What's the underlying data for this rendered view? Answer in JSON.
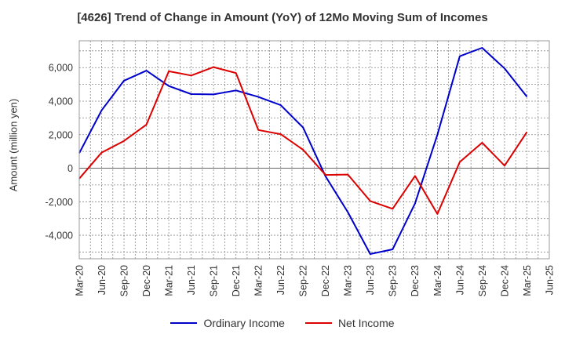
{
  "chart_data": {
    "type": "line",
    "title": "[4626]  Trend of Change in Amount (YoY) of 12Mo Moving Sum of Incomes",
    "xlabel": "",
    "ylabel": "Amount (million yen)",
    "categories": [
      "Mar-20",
      "Jun-20",
      "Sep-20",
      "Dec-20",
      "Mar-21",
      "Jun-21",
      "Sep-21",
      "Dec-21",
      "Mar-22",
      "Jun-22",
      "Sep-22",
      "Dec-22",
      "Mar-23",
      "Jun-23",
      "Sep-23",
      "Dec-23",
      "Mar-24",
      "Jun-24",
      "Sep-24",
      "Dec-24",
      "Mar-25",
      "Jun-25"
    ],
    "ylim": [
      -5400,
      7600
    ],
    "yticks": [
      -4000,
      -2000,
      0,
      2000,
      4000,
      6000
    ],
    "ytick_labels": [
      "-4,000",
      "-2,000",
      "0",
      "2,000",
      "4,000",
      "6,000"
    ],
    "grid": true,
    "legend_position": "bottom",
    "series": [
      {
        "name": "Ordinary Income",
        "color": "#0000cc",
        "values": [
          900,
          3450,
          5220,
          5820,
          4900,
          4420,
          4400,
          4640,
          4250,
          3760,
          2430,
          -480,
          -2620,
          -5120,
          -4840,
          -2100,
          2000,
          6680,
          7180,
          5950,
          4260,
          null
        ]
      },
      {
        "name": "Net Income",
        "color": "#dd0000",
        "values": [
          -620,
          930,
          1630,
          2600,
          5780,
          5530,
          6030,
          5680,
          2280,
          2030,
          1100,
          -400,
          -380,
          -1960,
          -2420,
          -460,
          -2730,
          370,
          1520,
          150,
          2160,
          null
        ]
      }
    ]
  }
}
